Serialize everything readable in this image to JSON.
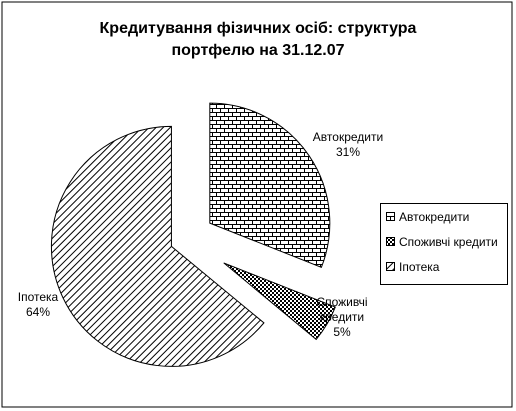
{
  "chart_data": {
    "type": "pie",
    "title": "Кредитування фізичних осіб: структура портфелю на 31.12.07",
    "categories": [
      "Автокредити",
      "Споживчі кредити",
      "Іпотека"
    ],
    "values": [
      31,
      5,
      64
    ],
    "value_labels": [
      "31%",
      "5%",
      "64%"
    ],
    "patterns": [
      "brick",
      "checker",
      "diagonal"
    ],
    "legend": "right"
  }
}
